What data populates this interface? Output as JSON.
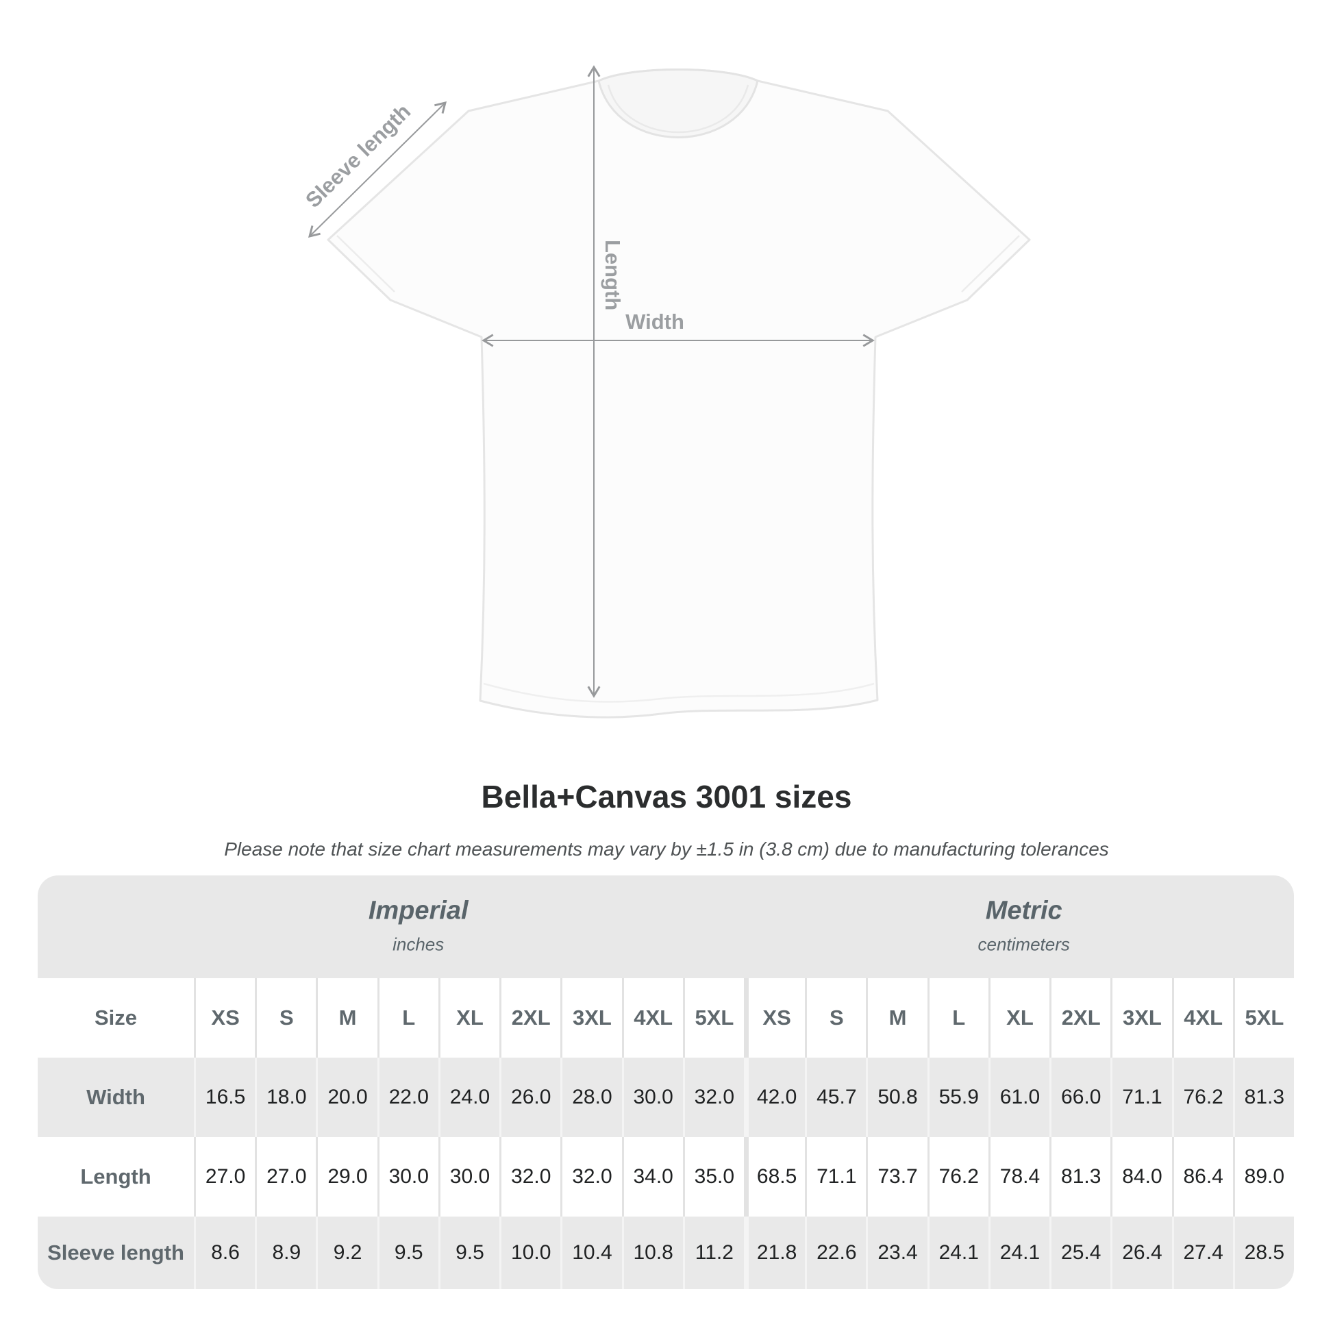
{
  "diagram": {
    "sleeve_length_label": "Sleeve length",
    "length_label": "Length",
    "width_label": "Width"
  },
  "heading": {
    "title": "Bella+Canvas 3001 sizes",
    "subtitle": "Please note that size chart measurements may vary by ±1.5 in (3.8 cm) due to manufacturing tolerances"
  },
  "table": {
    "groups": [
      {
        "name": "Imperial",
        "unit": "inches"
      },
      {
        "name": "Metric",
        "unit": "centimeters"
      }
    ],
    "size_col_header": "Size",
    "sizes": [
      "XS",
      "S",
      "M",
      "L",
      "XL",
      "2XL",
      "3XL",
      "4XL",
      "5XL"
    ],
    "rows": [
      {
        "key": "width",
        "label": "Width",
        "imperial": [
          "16.5",
          "18.0",
          "20.0",
          "22.0",
          "24.0",
          "26.0",
          "28.0",
          "30.0",
          "32.0"
        ],
        "metric": [
          "42.0",
          "45.7",
          "50.8",
          "55.9",
          "61.0",
          "66.0",
          "71.1",
          "76.2",
          "81.3"
        ]
      },
      {
        "key": "length",
        "label": "Length",
        "imperial": [
          "27.0",
          "27.0",
          "29.0",
          "30.0",
          "30.0",
          "32.0",
          "32.0",
          "34.0",
          "35.0"
        ],
        "metric": [
          "68.5",
          "71.1",
          "73.7",
          "76.2",
          "78.4",
          "81.3",
          "84.0",
          "86.4",
          "89.0"
        ]
      },
      {
        "key": "sleeve-length",
        "label": "Sleeve length",
        "imperial": [
          "8.6",
          "8.9",
          "9.2",
          "9.5",
          "9.5",
          "10.0",
          "10.4",
          "10.8",
          "11.2"
        ],
        "metric": [
          "21.8",
          "22.6",
          "23.4",
          "24.1",
          "24.1",
          "25.4",
          "26.4",
          "27.4",
          "28.5"
        ]
      }
    ]
  },
  "colors": {
    "band_gray": "#e8e8e8",
    "stripe_gray": "#e9e9e9",
    "header_text": "#5f686d",
    "value_text": "#202223",
    "title_text": "#2b2d2e",
    "annotation_gray": "#9b9ea1"
  },
  "chart_data": {
    "type": "table",
    "title": "Bella+Canvas 3001 sizes",
    "note": "Please note that size chart measurements may vary by ±1.5 in (3.8 cm) due to manufacturing tolerances",
    "column_groups": [
      {
        "label": "Imperial",
        "unit": "inches",
        "sizes": [
          "XS",
          "S",
          "M",
          "L",
          "XL",
          "2XL",
          "3XL",
          "4XL",
          "5XL"
        ]
      },
      {
        "label": "Metric",
        "unit": "centimeters",
        "sizes": [
          "XS",
          "S",
          "M",
          "L",
          "XL",
          "2XL",
          "3XL",
          "4XL",
          "5XL"
        ]
      }
    ],
    "rows": [
      {
        "measurement": "Width",
        "imperial_in": [
          16.5,
          18.0,
          20.0,
          22.0,
          24.0,
          26.0,
          28.0,
          30.0,
          32.0
        ],
        "metric_cm": [
          42.0,
          45.7,
          50.8,
          55.9,
          61.0,
          66.0,
          71.1,
          76.2,
          81.3
        ]
      },
      {
        "measurement": "Length",
        "imperial_in": [
          27.0,
          27.0,
          29.0,
          30.0,
          30.0,
          32.0,
          32.0,
          34.0,
          35.0
        ],
        "metric_cm": [
          68.5,
          71.1,
          73.7,
          76.2,
          78.4,
          81.3,
          84.0,
          86.4,
          89.0
        ]
      },
      {
        "measurement": "Sleeve length",
        "imperial_in": [
          8.6,
          8.9,
          9.2,
          9.5,
          9.5,
          10.0,
          10.4,
          10.8,
          11.2
        ],
        "metric_cm": [
          21.8,
          22.6,
          23.4,
          24.1,
          24.1,
          25.4,
          26.4,
          27.4,
          28.5
        ]
      }
    ]
  }
}
